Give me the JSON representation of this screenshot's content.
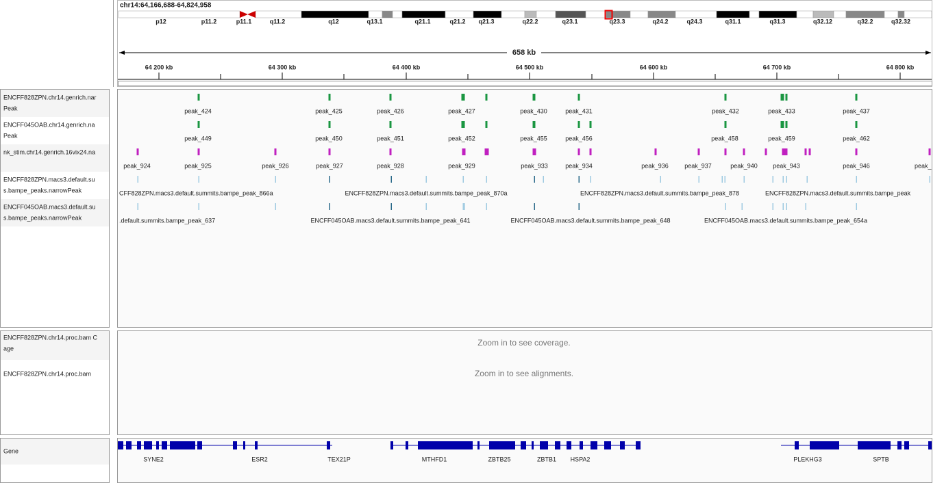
{
  "locus": "chr14:64,166,688-64,824,958",
  "ideogram": {
    "bands": [
      "p12",
      "p11.2",
      "p11.1",
      "q11.2",
      "q12",
      "q13.1",
      "q21.1",
      "q21.2",
      "q21.3",
      "q22.2",
      "q23.1",
      "q23.3",
      "q24.2",
      "q24.3",
      "q31.1",
      "q31.3",
      "q32.12",
      "q32.2",
      "q32.32"
    ]
  },
  "ruler": {
    "span": "658 kb",
    "ticks": [
      "64 200 kb",
      "64 300 kb",
      "64 400 kb",
      "64 500 kb",
      "64 600 kb",
      "64 700 kb",
      "64 800 kb"
    ]
  },
  "tracks": [
    {
      "name_lines": [
        "ENCFF828ZPN.chr14.genrich.nar",
        "Peak"
      ],
      "features": [
        "peak_424",
        "peak_425",
        "peak_426",
        "peak_427",
        "peak_430",
        "peak_431",
        "peak_432",
        "peak_433",
        "peak_437"
      ]
    },
    {
      "name_lines": [
        "ENCFF045OAB.chr14.genrich.na",
        "Peak"
      ],
      "features": [
        "peak_449",
        "peak_450",
        "peak_451",
        "peak_452",
        "peak_455",
        "peak_456",
        "peak_458",
        "peak_459",
        "peak_462"
      ]
    },
    {
      "name_lines": [
        "nk_stim.chr14.genrich.16vix24.na"
      ],
      "features": [
        "peak_924",
        "peak_925",
        "peak_926",
        "peak_927",
        "peak_928",
        "peak_929",
        "peak_933",
        "peak_934",
        "peak_936",
        "peak_937",
        "peak_940",
        "peak_943",
        "peak_946",
        "peak_"
      ]
    },
    {
      "name_lines": [
        "ENCFF828ZPN.macs3.default.su",
        "s.bampe_peaks.narrowPeak"
      ],
      "features": [
        "CFF828ZPN.macs3.default.summits.bampe_peak_866a",
        "ENCFF828ZPN.macs3.default.summits.bampe_peak_870a",
        "ENCFF828ZPN.macs3.default.summits.bampe_peak_878",
        "ENCFF828ZPN.macs3.default.summits.bampe_peak"
      ]
    },
    {
      "name_lines": [
        "ENCFF045OAB.macs3.default.su",
        "s.bampe_peaks.narrowPeak"
      ],
      "features": [
        ".default.summits.bampe_peak_637",
        "ENCFF045OAB.macs3.default.summits.bampe_peak_641",
        "ENCFF045OAB.macs3.default.summits.bampe_peak_648",
        "ENCFF045OAB.macs3.default.summits.bampe_peak_654a"
      ]
    }
  ],
  "alignment": {
    "coverage_name_lines": [
      "ENCFF828ZPN.chr14.proc.bam C",
      "age"
    ],
    "coverage_message": "Zoom in to see coverage.",
    "bam_name": "ENCFF828ZPN.chr14.proc.bam",
    "bam_message": "Zoom in to see alignments."
  },
  "gene_track": {
    "name": "Gene",
    "genes": [
      "SYNE2",
      "ESR2",
      "TEX21P",
      "MTHFD1",
      "ZBTB25",
      "ZBTB1",
      "HSPA2",
      "PLEKHG3",
      "SPTB"
    ]
  }
}
